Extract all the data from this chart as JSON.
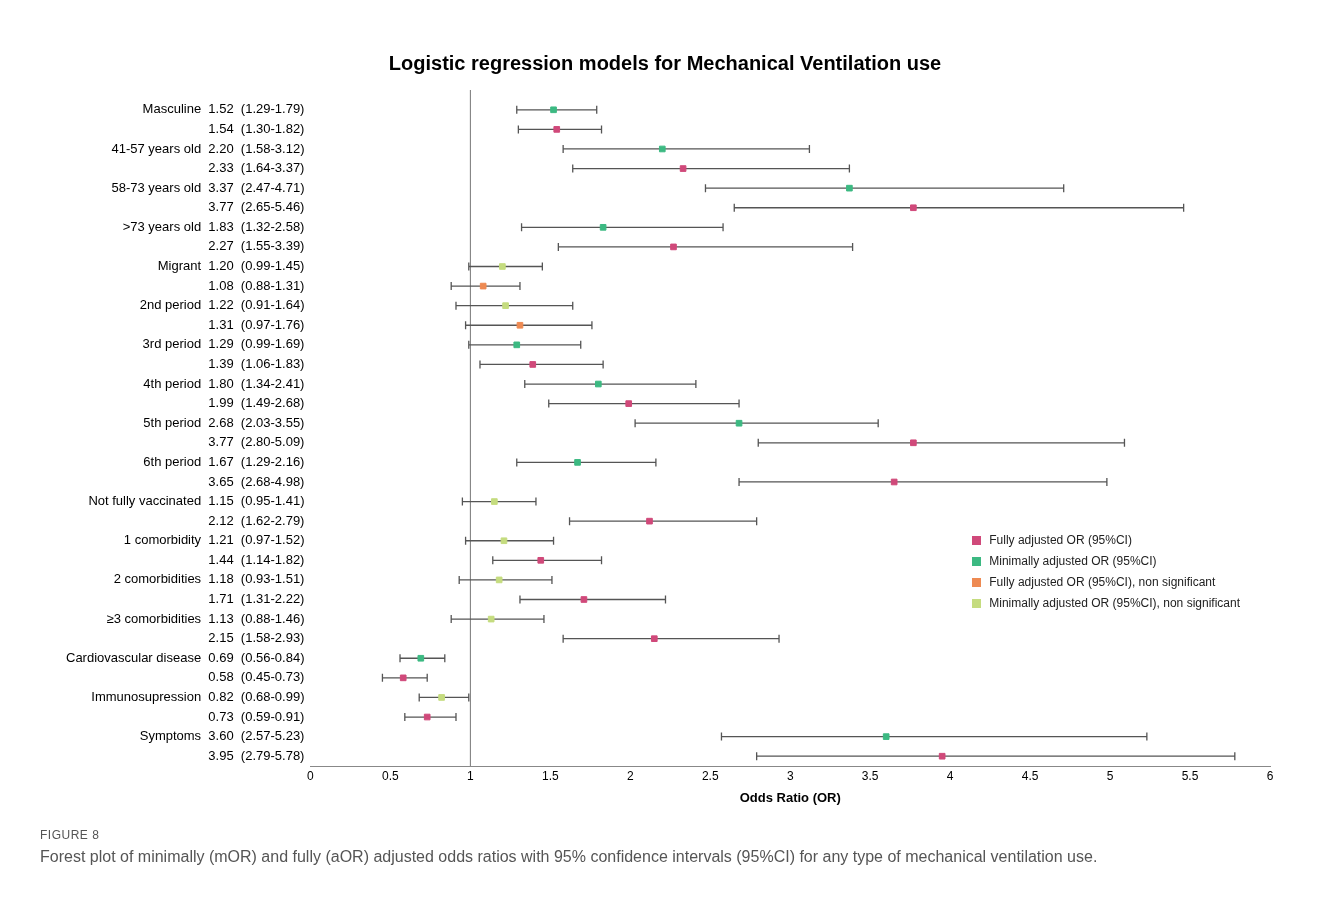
{
  "chart_data": {
    "type": "scatter",
    "title": "Logistic regression models for Mechanical Ventilation use",
    "xlabel": "Odds Ratio (OR)",
    "orientation": "horizontal",
    "marker": "square",
    "grid": false,
    "legend": "right",
    "categories": [
      "Masculine  1.52  (1.29-1.79)",
      "1.54  (1.30-1.82)",
      "41-57 years old  2.20  (1.58-3.12)",
      "2.33  (1.64-3.37)",
      "58-73 years old  3.37  (2.47-4.71)",
      "3.77  (2.65-5.46)",
      ">73 years old  1.83  (1.32-2.58)",
      "2.27  (1.55-3.39)",
      "Migrant  1.20  (0.99-1.45)",
      "1.08  (0.88-1.31)",
      "2nd period  1.22  (0.91-1.64)",
      "1.31  (0.97-1.76)",
      "3rd period  1.29  (0.99-1.69)",
      "1.39  (1.06-1.83)",
      "4th period  1.80  (1.34-2.41)",
      "1.99  (1.49-2.68)",
      "5th period  2.68  (2.03-3.55)",
      "3.77  (2.80-5.09)",
      "6th period  1.67  (1.29-2.16)",
      "3.65  (2.68-4.98)",
      "Not fully vaccinated  1.15  (0.95-1.41)",
      "2.12  (1.62-2.79)",
      "1 comorbidity  1.21  (0.97-1.52)",
      "1.44  (1.14-1.82)",
      "2 comorbidities  1.18  (0.93-1.51)",
      "1.71  (1.31-2.22)",
      "≥3 comorbidities  1.13  (0.88-1.46)",
      "2.15  (1.58-2.93)",
      "Cardiovascular disease  0.69  (0.56-0.84)",
      "0.58  (0.45-0.73)",
      "Immunosupression  0.82  (0.68-0.99)",
      "0.73  (0.59-0.91)",
      "Symptoms  3.60  (2.57-5.23)",
      "3.95  (2.79-5.78)"
    ],
    "series": [
      {
        "name": "Fully adjusted OR (95%CI)",
        "color": "#d0497a",
        "values": [
          null,
          1.54,
          null,
          2.33,
          null,
          3.77,
          null,
          2.27,
          null,
          null,
          null,
          null,
          null,
          1.39,
          null,
          1.99,
          null,
          3.77,
          null,
          3.65,
          null,
          2.12,
          null,
          1.44,
          null,
          1.71,
          null,
          2.15,
          null,
          0.58,
          null,
          0.73,
          null,
          3.95
        ],
        "errors": [
          null,
          [
            1.3,
            1.82
          ],
          null,
          [
            1.64,
            3.37
          ],
          null,
          [
            2.65,
            5.46
          ],
          null,
          [
            1.55,
            3.39
          ],
          null,
          null,
          null,
          null,
          null,
          [
            1.06,
            1.83
          ],
          null,
          [
            1.49,
            2.68
          ],
          null,
          [
            2.8,
            5.09
          ],
          null,
          [
            2.68,
            4.98
          ],
          null,
          [
            1.62,
            2.79
          ],
          null,
          [
            1.14,
            1.82
          ],
          null,
          [
            1.31,
            2.22
          ],
          null,
          [
            1.58,
            2.93
          ],
          null,
          [
            0.45,
            0.73
          ],
          null,
          [
            0.59,
            0.91
          ],
          null,
          [
            2.79,
            5.78
          ]
        ]
      },
      {
        "name": "Minimally adjusted OR (95%CI)",
        "color": "#3cb982",
        "values": [
          1.52,
          null,
          2.2,
          null,
          3.37,
          null,
          1.83,
          null,
          null,
          null,
          null,
          null,
          1.29,
          null,
          1.8,
          null,
          2.68,
          null,
          1.67,
          null,
          null,
          null,
          null,
          null,
          null,
          null,
          null,
          null,
          0.69,
          null,
          null,
          null,
          3.6,
          null
        ],
        "errors": [
          [
            1.29,
            1.79
          ],
          null,
          [
            1.58,
            3.12
          ],
          null,
          [
            2.47,
            4.71
          ],
          null,
          [
            1.32,
            2.58
          ],
          null,
          null,
          null,
          null,
          null,
          [
            0.99,
            1.69
          ],
          null,
          [
            1.34,
            2.41
          ],
          null,
          [
            2.03,
            3.55
          ],
          null,
          [
            1.29,
            2.16
          ],
          null,
          null,
          null,
          null,
          null,
          null,
          null,
          null,
          null,
          [
            0.56,
            0.84
          ],
          null,
          null,
          null,
          [
            2.57,
            5.23
          ],
          null
        ]
      },
      {
        "name": "Fully adjusted OR (95%CI), non significant",
        "color": "#ee8a52",
        "values": [
          null,
          null,
          null,
          null,
          null,
          null,
          null,
          null,
          null,
          1.08,
          null,
          1.31,
          null,
          null,
          null,
          null,
          null,
          null,
          null,
          null,
          null,
          null,
          null,
          null,
          null,
          null,
          null,
          null,
          null,
          null,
          null,
          null,
          null,
          null
        ],
        "errors": [
          null,
          null,
          null,
          null,
          null,
          null,
          null,
          null,
          null,
          [
            0.88,
            1.31
          ],
          null,
          [
            0.97,
            1.76
          ],
          null,
          null,
          null,
          null,
          null,
          null,
          null,
          null,
          null,
          null,
          null,
          null,
          null,
          null,
          null,
          null,
          null,
          null,
          null,
          null,
          null,
          null
        ]
      },
      {
        "name": "Minimally adjusted OR (95%CI), non significant",
        "color": "#c5dc7f",
        "values": [
          null,
          null,
          null,
          null,
          null,
          null,
          null,
          null,
          1.2,
          null,
          1.22,
          null,
          null,
          null,
          null,
          null,
          null,
          null,
          null,
          null,
          1.15,
          null,
          1.21,
          null,
          1.18,
          null,
          1.13,
          null,
          null,
          null,
          0.82,
          null,
          null,
          null
        ],
        "errors": [
          null,
          null,
          null,
          null,
          null,
          null,
          null,
          null,
          [
            0.99,
            1.45
          ],
          null,
          [
            0.91,
            1.64
          ],
          null,
          null,
          null,
          null,
          null,
          null,
          null,
          null,
          null,
          [
            0.95,
            1.41
          ],
          null,
          [
            0.97,
            1.52
          ],
          null,
          [
            0.93,
            1.51
          ],
          null,
          [
            0.88,
            1.46
          ],
          null,
          null,
          null,
          [
            0.68,
            0.99
          ],
          null,
          null,
          null
        ]
      }
    ],
    "xlim": [
      0,
      6
    ],
    "xticks": [
      0,
      0.5,
      1,
      1.5,
      2,
      2.5,
      3,
      3.5,
      4,
      4.5,
      5,
      5.5,
      6
    ],
    "ref_lines": [
      {
        "axis": "x",
        "value": 1,
        "color": "#777777"
      }
    ],
    "annotations": [
      "FIGURE 8",
      "Forest plot of minimally (mOR) and fully (aOR) adjusted odds ratios with 95% confidence intervals (95%CI) for any type of mechanical ventilation use."
    ]
  }
}
